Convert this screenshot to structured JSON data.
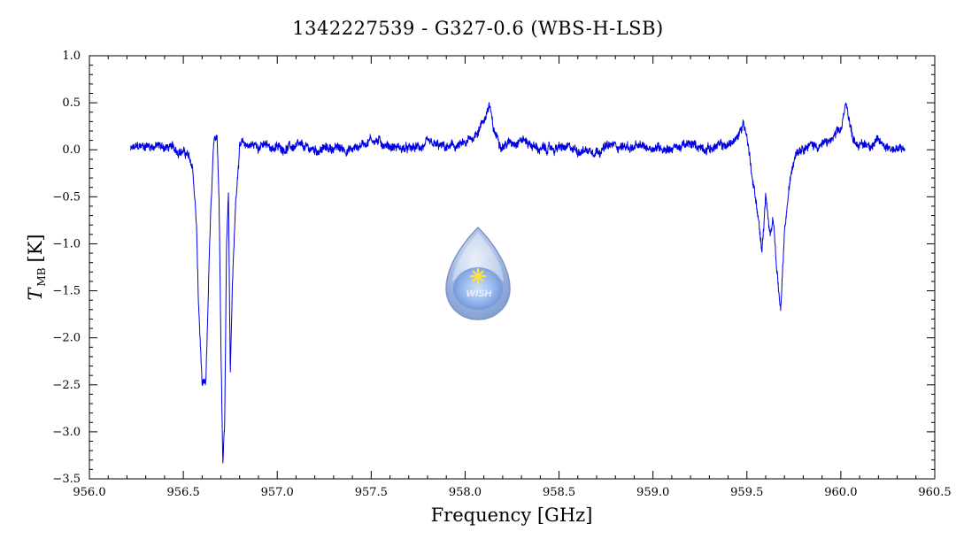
{
  "chart_data": {
    "type": "line",
    "title": "1342227539 - G327-0.6 (WBS-H-LSB)",
    "xlabel": "Frequency [GHz]",
    "ylabel_main": "T",
    "ylabel_sub": "MB",
    "ylabel_unit": "[K]",
    "xlim": [
      956.0,
      960.5
    ],
    "ylim": [
      -3.5,
      1.0
    ],
    "x_major_ticks": [
      956.0,
      956.5,
      957.0,
      957.5,
      958.0,
      958.5,
      959.0,
      959.5,
      960.0,
      960.5
    ],
    "x_tick_labels": [
      "956.0",
      "956.5",
      "957.0",
      "957.5",
      "958.0",
      "958.5",
      "959.0",
      "959.5",
      "960.0",
      "960.5"
    ],
    "y_major_ticks": [
      1.0,
      0.5,
      0.0,
      -0.5,
      -1.0,
      -1.5,
      -2.0,
      -2.5,
      -3.0,
      -3.5
    ],
    "y_tick_labels": [
      "1.0",
      "0.5",
      "0.0",
      "−0.5",
      "−1.0",
      "−1.5",
      "−2.0",
      "−2.5",
      "−3.0",
      "−3.5"
    ],
    "grid": false,
    "series_color": "#0000e6",
    "logo_text": "WISH",
    "series": [
      {
        "x": [
          956.22,
          956.3,
          956.4,
          956.48,
          956.52,
          956.55,
          956.57,
          956.58,
          956.6,
          956.62,
          956.64,
          956.66,
          956.68,
          956.69,
          956.7,
          956.71,
          956.72,
          956.73,
          956.74,
          956.75,
          956.76,
          956.78,
          956.8,
          956.9,
          957.0,
          957.1,
          957.2,
          957.3,
          957.4,
          957.5,
          957.6,
          957.7,
          957.8,
          957.9,
          958.0,
          958.05,
          958.1,
          958.13,
          958.15,
          958.2,
          958.3,
          958.4,
          958.5,
          958.6,
          958.7,
          958.8,
          958.9,
          959.0,
          959.1,
          959.2,
          959.3,
          959.4,
          959.45,
          959.48,
          959.5,
          959.53,
          959.56,
          959.58,
          959.6,
          959.62,
          959.64,
          959.66,
          959.68,
          959.7,
          959.72,
          959.74,
          959.76,
          959.8,
          959.9,
          959.95,
          960.0,
          960.03,
          960.06,
          960.1,
          960.2,
          960.3,
          960.34
        ],
        "y": [
          0.0,
          0.05,
          0.03,
          0.0,
          -0.05,
          -0.2,
          -0.8,
          -1.6,
          -2.5,
          -2.52,
          -1.0,
          0.0,
          0.15,
          -0.5,
          -2.0,
          -3.3,
          -2.9,
          -1.0,
          -0.4,
          -2.4,
          -1.5,
          -0.5,
          0.05,
          0.05,
          0.02,
          0.03,
          0.0,
          0.02,
          0.0,
          0.12,
          0.04,
          0.0,
          0.05,
          0.02,
          0.05,
          0.15,
          0.32,
          0.48,
          0.2,
          0.05,
          0.12,
          0.0,
          0.02,
          0.0,
          0.0,
          0.05,
          0.02,
          0.03,
          0.02,
          0.05,
          0.02,
          0.05,
          0.12,
          0.3,
          0.15,
          -0.3,
          -0.7,
          -1.1,
          -0.5,
          -0.9,
          -0.7,
          -1.3,
          -1.75,
          -0.9,
          -0.5,
          -0.2,
          0.0,
          0.05,
          0.05,
          0.1,
          0.2,
          0.5,
          0.15,
          0.05,
          0.08,
          0.0,
          0.0
        ]
      }
    ]
  }
}
